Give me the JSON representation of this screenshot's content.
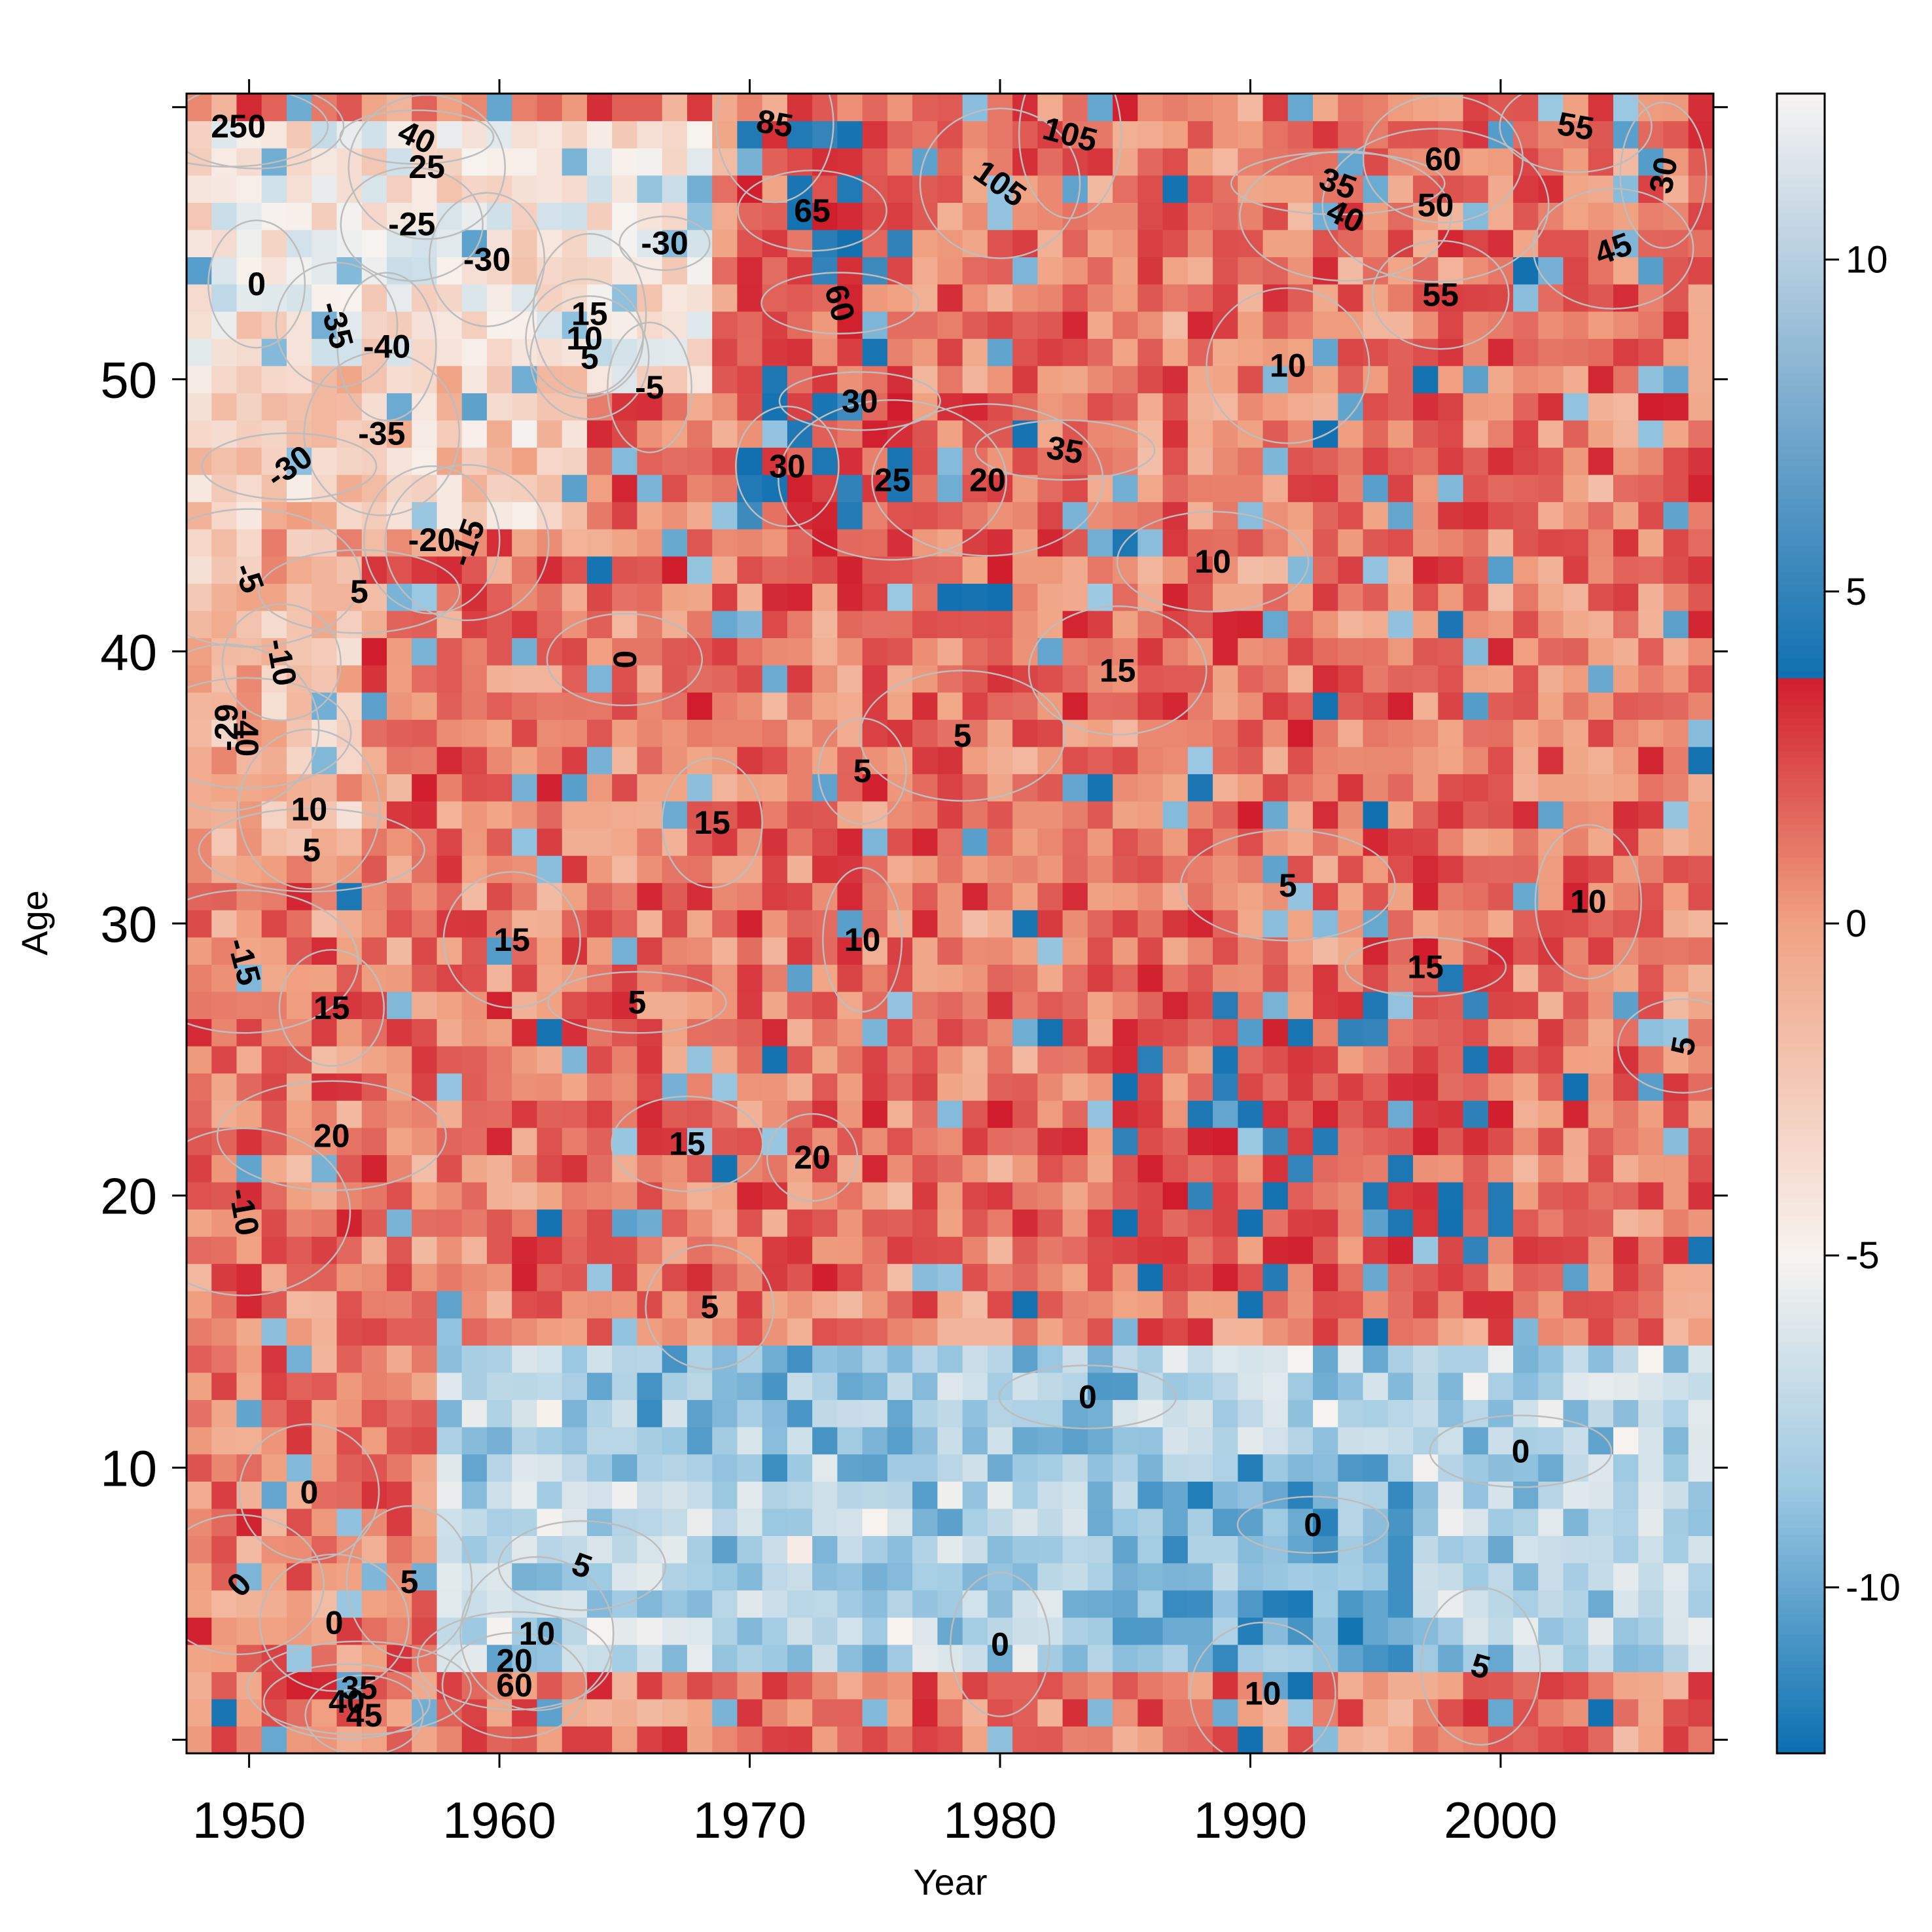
{
  "chart_data": {
    "type": "heatmap",
    "title": "",
    "xlabel": "Year",
    "ylabel": "Age",
    "xlim": [
      1947.5,
      2008.5
    ],
    "ylim": [
      -0.5,
      60.5
    ],
    "x_ticks": [
      1950,
      1960,
      1970,
      1980,
      1990,
      2000
    ],
    "y_ticks": [
      10,
      20,
      30,
      40,
      50
    ],
    "colorbar": {
      "range": [
        -12.5,
        12.5
      ],
      "ticks": [
        -10,
        -5,
        0,
        5,
        10
      ],
      "colors": {
        "low": "#0a6fb0",
        "mid_low": "#9dc9e2",
        "pale": "#f7f3ef",
        "mid_high": "#f0a282",
        "high_dark": "#d01c2c",
        "top_low": "#1170b0",
        "top_high": "#f7f4f2"
      }
    },
    "regions": [
      {
        "x": [
          1948,
          2008
        ],
        "y": [
          0,
          60
        ],
        "value": 1.2
      },
      {
        "x": [
          1948,
          1968
        ],
        "y": [
          50,
          59
        ],
        "value": -4.5
      },
      {
        "x": [
          1948,
          1963
        ],
        "y": [
          45,
          50
        ],
        "value": -2.5
      },
      {
        "x": [
          1948,
          1954
        ],
        "y": [
          33,
          45
        ],
        "value": -1.5
      },
      {
        "x": [
          1970,
          1976
        ],
        "y": [
          45,
          59
        ],
        "value": 2.8
      },
      {
        "x": [
          1958,
          2008
        ],
        "y": [
          3,
          14
        ],
        "value": -7.5
      },
      {
        "x": [
          1984,
          1996
        ],
        "y": [
          3,
          10
        ],
        "value": -9.5
      },
      {
        "x": [
          1963,
          1985
        ],
        "y": [
          10,
          14
        ],
        "value": -8.5
      },
      {
        "x": [
          1985,
          2000
        ],
        "y": [
          17,
          28
        ],
        "value": 2.6
      },
      {
        "x": [
          1975,
          1985
        ],
        "y": [
          38,
          45
        ],
        "value": 1.8
      }
    ],
    "contour_labels": [
      {
        "text": "25",
        "x": 1949.2,
        "y": 59.3,
        "angle": 0
      },
      {
        "text": "0",
        "x": 1950.3,
        "y": 59.3,
        "angle": 0
      },
      {
        "text": "40",
        "x": 1956.7,
        "y": 58.9,
        "angle": 25
      },
      {
        "text": "25",
        "x": 1957.1,
        "y": 57.8,
        "angle": 0
      },
      {
        "text": "85",
        "x": 1971.0,
        "y": 59.4,
        "angle": 10
      },
      {
        "text": "105",
        "x": 1982.8,
        "y": 59.0,
        "angle": 15
      },
      {
        "text": "105",
        "x": 1980.0,
        "y": 57.2,
        "angle": 35
      },
      {
        "text": "55",
        "x": 2003.0,
        "y": 59.3,
        "angle": 10
      },
      {
        "text": "60",
        "x": 1997.7,
        "y": 58.1,
        "angle": 0
      },
      {
        "text": "35",
        "x": 1993.5,
        "y": 57.2,
        "angle": 20
      },
      {
        "text": "40",
        "x": 1993.8,
        "y": 56.0,
        "angle": 25
      },
      {
        "text": "30",
        "x": 2006.5,
        "y": 57.5,
        "angle": -80
      },
      {
        "text": "50",
        "x": 1997.4,
        "y": 56.4,
        "angle": 0
      },
      {
        "text": "65",
        "x": 1972.5,
        "y": 56.2,
        "angle": 0
      },
      {
        "text": "-25",
        "x": 1956.5,
        "y": 55.7,
        "angle": 0
      },
      {
        "text": "-30",
        "x": 1966.6,
        "y": 55.0,
        "angle": 0
      },
      {
        "text": "-30",
        "x": 1959.5,
        "y": 54.4,
        "angle": 0
      },
      {
        "text": "45",
        "x": 2004.5,
        "y": 54.8,
        "angle": -20
      },
      {
        "text": "0",
        "x": 1950.3,
        "y": 53.5,
        "angle": 0
      },
      {
        "text": "55",
        "x": 1997.6,
        "y": 53.1,
        "angle": 0
      },
      {
        "text": "15",
        "x": 1963.6,
        "y": 52.4,
        "angle": 0
      },
      {
        "text": "10",
        "x": 1963.4,
        "y": 51.5,
        "angle": 0
      },
      {
        "text": "5",
        "x": 1963.6,
        "y": 50.8,
        "angle": 0
      },
      {
        "text": "-35",
        "x": 1953.5,
        "y": 52.0,
        "angle": 75
      },
      {
        "text": "-40",
        "x": 1955.5,
        "y": 51.2,
        "angle": 0
      },
      {
        "text": "10",
        "x": 1991.5,
        "y": 50.5,
        "angle": 0
      },
      {
        "text": "60",
        "x": 1973.6,
        "y": 52.8,
        "angle": 75
      },
      {
        "text": "-5",
        "x": 1966.0,
        "y": 49.7,
        "angle": 0
      },
      {
        "text": "30",
        "x": 1974.4,
        "y": 49.2,
        "angle": 0
      },
      {
        "text": "-35",
        "x": 1955.3,
        "y": 48.0,
        "angle": 0
      },
      {
        "text": "35",
        "x": 1982.6,
        "y": 47.4,
        "angle": 10
      },
      {
        "text": "30",
        "x": 1971.5,
        "y": 46.8,
        "angle": 0
      },
      {
        "text": "25",
        "x": 1975.7,
        "y": 46.3,
        "angle": 0
      },
      {
        "text": "20",
        "x": 1979.5,
        "y": 46.3,
        "angle": 0
      },
      {
        "text": "-30",
        "x": 1951.6,
        "y": 46.8,
        "angle": -35
      },
      {
        "text": "-20",
        "x": 1957.3,
        "y": 44.1,
        "angle": 0
      },
      {
        "text": "-15",
        "x": 1958.7,
        "y": 44.0,
        "angle": -70
      },
      {
        "text": "10",
        "x": 1988.5,
        "y": 43.3,
        "angle": 0
      },
      {
        "text": "-5",
        "x": 1950.0,
        "y": 42.7,
        "angle": 70
      },
      {
        "text": "5",
        "x": 1954.4,
        "y": 42.2,
        "angle": 0
      },
      {
        "text": "-10",
        "x": 1951.3,
        "y": 39.6,
        "angle": 80
      },
      {
        "text": "0",
        "x": 1965.0,
        "y": 39.7,
        "angle": 90
      },
      {
        "text": "15",
        "x": 1984.7,
        "y": 39.3,
        "angle": 0
      },
      {
        "text": "-29",
        "x": 1949.1,
        "y": 37.2,
        "angle": -90
      },
      {
        "text": "-40",
        "x": 1949.9,
        "y": 37.0,
        "angle": 90
      },
      {
        "text": "5",
        "x": 1978.5,
        "y": 36.9,
        "angle": 0
      },
      {
        "text": "5",
        "x": 1974.5,
        "y": 35.6,
        "angle": 0
      },
      {
        "text": "10",
        "x": 1952.4,
        "y": 34.2,
        "angle": 0
      },
      {
        "text": "15",
        "x": 1968.5,
        "y": 33.7,
        "angle": 0
      },
      {
        "text": "5",
        "x": 1952.5,
        "y": 32.7,
        "angle": 0
      },
      {
        "text": "5",
        "x": 1991.5,
        "y": 31.4,
        "angle": 0
      },
      {
        "text": "10",
        "x": 2003.5,
        "y": 30.8,
        "angle": 0
      },
      {
        "text": "15",
        "x": 1960.5,
        "y": 29.4,
        "angle": 0
      },
      {
        "text": "10",
        "x": 1974.5,
        "y": 29.4,
        "angle": 0
      },
      {
        "text": "-15",
        "x": 1949.8,
        "y": 28.6,
        "angle": 75
      },
      {
        "text": "15",
        "x": 1997.0,
        "y": 28.4,
        "angle": 0
      },
      {
        "text": "15",
        "x": 1953.3,
        "y": 26.9,
        "angle": 0
      },
      {
        "text": "5",
        "x": 1965.5,
        "y": 27.1,
        "angle": 0
      },
      {
        "text": "5",
        "x": 2007.3,
        "y": 25.5,
        "angle": -80
      },
      {
        "text": "20",
        "x": 1953.3,
        "y": 22.2,
        "angle": 0
      },
      {
        "text": "15",
        "x": 1967.5,
        "y": 21.9,
        "angle": 0
      },
      {
        "text": "20",
        "x": 1972.5,
        "y": 21.4,
        "angle": 0
      },
      {
        "text": "-10",
        "x": 1949.8,
        "y": 19.4,
        "angle": 80
      },
      {
        "text": "5",
        "x": 1968.4,
        "y": 15.9,
        "angle": 0
      },
      {
        "text": "0",
        "x": 1983.5,
        "y": 12.6,
        "angle": 0
      },
      {
        "text": "0",
        "x": 2000.8,
        "y": 10.6,
        "angle": 0
      },
      {
        "text": "0",
        "x": 1952.4,
        "y": 9.1,
        "angle": 0
      },
      {
        "text": "0",
        "x": 1992.5,
        "y": 7.9,
        "angle": 0
      },
      {
        "text": "5",
        "x": 1963.3,
        "y": 6.4,
        "angle": 20
      },
      {
        "text": "5",
        "x": 1956.4,
        "y": 5.8,
        "angle": 0
      },
      {
        "text": "0",
        "x": 1949.6,
        "y": 5.7,
        "angle": -45
      },
      {
        "text": "0",
        "x": 1953.4,
        "y": 4.3,
        "angle": 0
      },
      {
        "text": "10",
        "x": 1961.5,
        "y": 3.9,
        "angle": 0
      },
      {
        "text": "0",
        "x": 1980.0,
        "y": 3.5,
        "angle": 0
      },
      {
        "text": "20",
        "x": 1960.6,
        "y": 2.9,
        "angle": 0
      },
      {
        "text": "5",
        "x": 1999.2,
        "y": 2.7,
        "angle": 15
      },
      {
        "text": "35",
        "x": 1954.4,
        "y": 1.9,
        "angle": 0
      },
      {
        "text": "60",
        "x": 1960.6,
        "y": 2.0,
        "angle": 0
      },
      {
        "text": "40",
        "x": 1953.9,
        "y": 1.4,
        "angle": 0
      },
      {
        "text": "10",
        "x": 1990.5,
        "y": 1.7,
        "angle": 0
      },
      {
        "text": "45",
        "x": 1954.6,
        "y": 0.9,
        "angle": 0
      }
    ]
  }
}
